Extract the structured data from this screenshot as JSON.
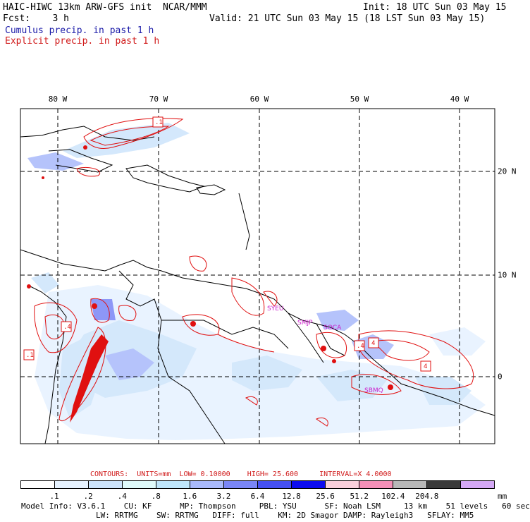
{
  "header": {
    "model_title": "HAIC-HIWC 13km ARW-GFS init",
    "center": "NCAR/MMM",
    "init": "Init: 18 UTC Sun 03 May 15",
    "fcst_label": "Fcst:",
    "fcst_value": "3 h",
    "valid": "Valid: 21 UTC Sun 03 May 15 (18 LST Sun 03 May 15)",
    "field_cumulus": "Cumulus precip. in past 1 h",
    "field_explicit": "Explicit precip. in past 1 h"
  },
  "colors": {
    "cumulus_text": "#1a1aa8",
    "explicit_text": "#d01818",
    "contour": "#e01010",
    "coast": "#000000"
  },
  "longitude_labels": [
    "80 W",
    "70 W",
    "60 W",
    "50 W",
    "40 W"
  ],
  "latitude_labels": [
    "20 N",
    "10 N",
    "0"
  ],
  "station_labels": [
    "SYEU",
    "SMJP",
    "SOCA",
    "SBMQ"
  ],
  "contour_box_labels": [
    ".1",
    ".4",
    ".1",
    ".4",
    "4",
    "4"
  ],
  "contours_line": {
    "label": "CONTOURS:",
    "units": "UNITS=mm",
    "low": "LOW= 0.10000",
    "high": "HIGH= 25.600",
    "interval": "INTERVAL=X 4.0000"
  },
  "colorbar": {
    "unit": "mm",
    "labels": [
      ".1",
      ".2",
      ".4",
      ".8",
      "1.6",
      "3.2",
      "6.4",
      "12.8",
      "25.6",
      "51.2",
      "102.4",
      "204.8"
    ],
    "colors": [
      "#ffffff",
      "#e6f2ff",
      "#cde4fb",
      "#dffafa",
      "#bfe6fb",
      "#a9b9fb",
      "#7a86f6",
      "#4550f2",
      "#0c0cf0",
      "#fad0dc",
      "#f490b8",
      "#b8b8b8",
      "#3a3a3a",
      "#d4a8f5"
    ]
  },
  "model_info": {
    "line1": "Model Info: V3.6.1    CU: KF      MP: Thompson     PBL: YSU      SF: Noah LSM     13 km    51 levels   60 sec",
    "line2": "                LW: RRTMG    SW: RRTMG   DIFF: full    KM: 2D Smagor DAMP: Rayleigh3   SFLAY: MM5"
  }
}
